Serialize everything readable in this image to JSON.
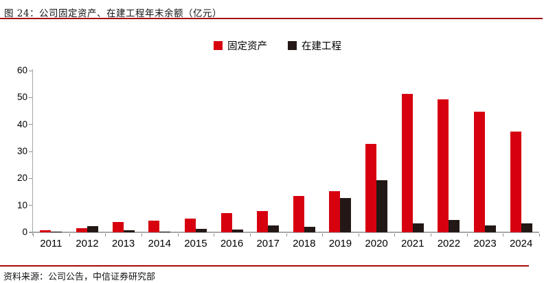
{
  "header": {
    "title": "图 24：公司固定资产、在建工程年末余额（亿元）"
  },
  "footer": {
    "source": "资料来源：公司公告，中信证券研究部"
  },
  "legend": {
    "items": [
      {
        "label": "固定资产",
        "color": "#d7000f"
      },
      {
        "label": "在建工程",
        "color": "#231815"
      }
    ]
  },
  "colors": {
    "fixed_assets": "#d7000f",
    "construction": "#231815",
    "rule_red": "#a50808",
    "axis_gray": "#a6a6a6"
  },
  "chart_data": {
    "type": "bar",
    "title": "公司固定资产、在建工程年末余额（亿元）",
    "xlabel": "",
    "ylabel": "",
    "ylim": [
      0,
      60
    ],
    "yticks": [
      0,
      10,
      20,
      30,
      40,
      50,
      60
    ],
    "grid": false,
    "legend_position": "top-center",
    "categories": [
      "2011",
      "2012",
      "2013",
      "2014",
      "2015",
      "2016",
      "2017",
      "2018",
      "2019",
      "2020",
      "2021",
      "2022",
      "2023",
      "2024"
    ],
    "series": [
      {
        "name": "固定资产",
        "color": "#d7000f",
        "values": [
          0.7,
          1.6,
          3.9,
          4.2,
          5.0,
          7.0,
          8.0,
          13.6,
          15.2,
          32.9,
          51.3,
          49.2,
          44.8,
          37.5
        ]
      },
      {
        "name": "在建工程",
        "color": "#231815",
        "values": [
          0.2,
          2.3,
          0.7,
          0.3,
          1.4,
          0.9,
          2.6,
          2.1,
          12.6,
          19.2,
          3.4,
          4.5,
          2.6,
          3.2
        ]
      }
    ]
  }
}
